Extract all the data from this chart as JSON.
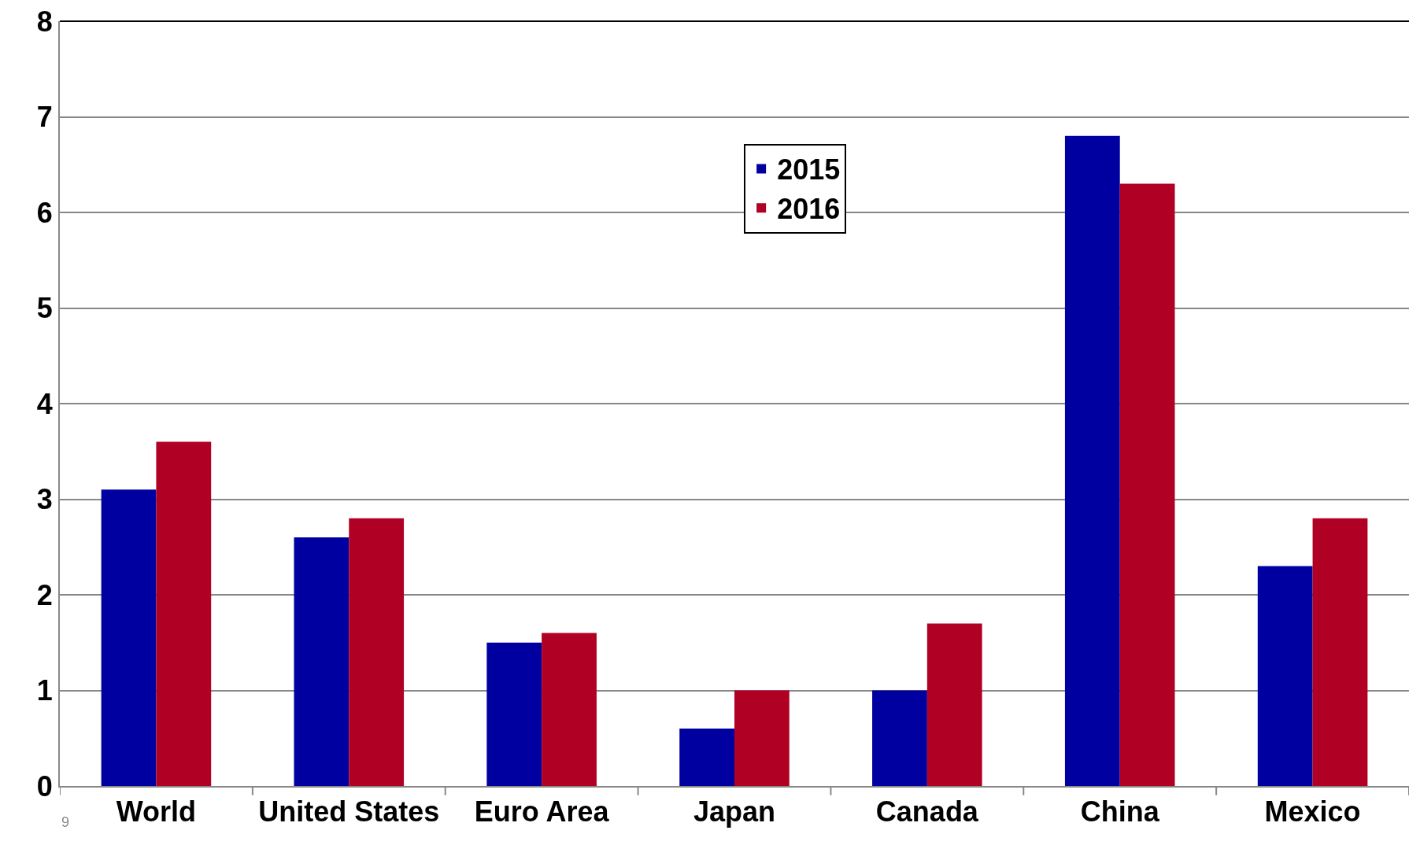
{
  "chart_data": {
    "type": "bar",
    "categories": [
      "World",
      "United States",
      "Euro Area",
      "Japan",
      "Canada",
      "China",
      "Mexico"
    ],
    "series": [
      {
        "name": "2015",
        "color": "#0000a0",
        "values": [
          3.1,
          2.6,
          1.5,
          0.6,
          1.0,
          6.8,
          2.3
        ]
      },
      {
        "name": "2016",
        "color": "#b00024",
        "values": [
          3.6,
          2.8,
          1.6,
          1.0,
          1.7,
          6.3,
          2.8
        ]
      }
    ],
    "ylim": [
      0,
      8
    ],
    "yticks": [
      0,
      1,
      2,
      3,
      4,
      5,
      6,
      7,
      8
    ],
    "grid": "y",
    "legend": "top",
    "annotations": [
      "9"
    ]
  }
}
